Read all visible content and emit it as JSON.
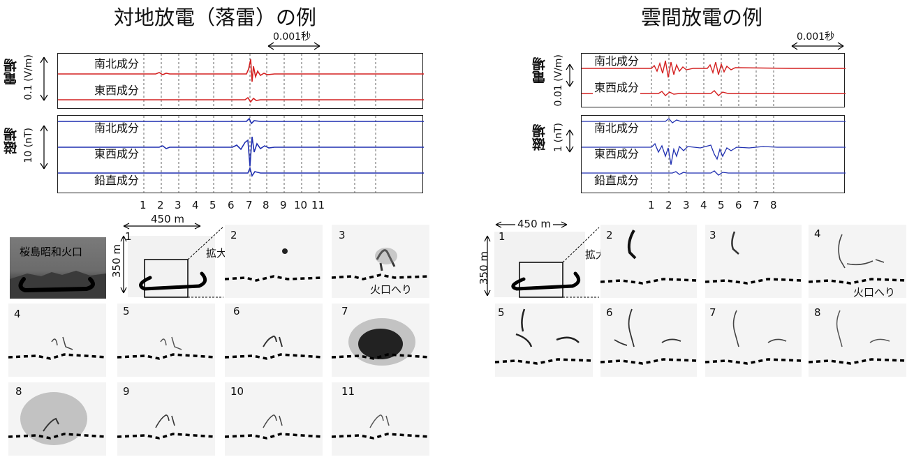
{
  "left": {
    "title": "対地放電（落雷）の例",
    "time_scale": "0.001秒",
    "efield_label": "電場",
    "efield_scale": "0.1 (V/m)",
    "mfield_label": "磁場",
    "mfield_scale": "10 (nT)",
    "components": {
      "ns": "南北成分",
      "ew": "東西成分",
      "vert": "鉛直成分"
    },
    "ticks": [
      "1",
      "2",
      "3",
      "4",
      "5",
      "6",
      "7",
      "8",
      "9",
      "10",
      "11"
    ],
    "width_scale": "450 m",
    "height_scale": "350 m",
    "zoom": "拡大",
    "crater_name": "桜島昭和火口",
    "crater_rim": "火口へり",
    "frames": [
      "1",
      "2",
      "3",
      "4",
      "5",
      "6",
      "7",
      "8",
      "9",
      "10",
      "11"
    ]
  },
  "right": {
    "title": "雲間放電の例",
    "time_scale": "0.001秒",
    "efield_label": "電場",
    "efield_scale": "0.01 (V/m)",
    "mfield_label": "磁場",
    "mfield_scale": "1 (nT)",
    "components": {
      "ns": "南北成分",
      "ew": "東西成分",
      "vert": "鉛直成分"
    },
    "ticks": [
      "1",
      "2",
      "3",
      "4",
      "5",
      "6",
      "7",
      "8"
    ],
    "width_scale": "450 m",
    "height_scale": "350 m",
    "zoom": "拡大",
    "crater_rim": "火口へり",
    "frames": [
      "1",
      "2",
      "3",
      "4",
      "5",
      "6",
      "7",
      "8"
    ]
  },
  "colors": {
    "efield": "#d42020",
    "mfield": "#1f2fb0",
    "dashes": "#555555"
  }
}
